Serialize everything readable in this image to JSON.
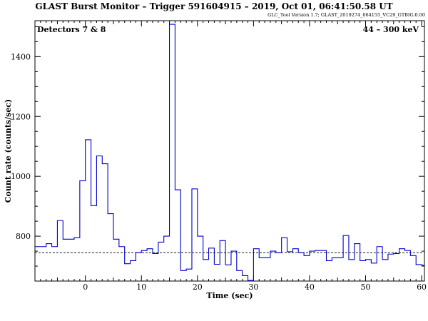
{
  "chart_data": {
    "type": "line",
    "style": "step",
    "title": "GLAST Burst Monitor  –  Trigger 591604915  –  2019, Oct 01, 06:41:50.58 UT",
    "subtitle": "GLC_Tool Version 1.7; GLAST_2019274_064155_VC29_GTBIG.0.00",
    "xlabel": "Time (sec)",
    "ylabel": "Count rate (counts/sec)",
    "annotation_left": "Detectors 7 & 8",
    "annotation_right": "44 – 300 keV",
    "xlim": [
      -9,
      60.5
    ],
    "ylim": [
      650,
      1520
    ],
    "xticks": [
      0,
      10,
      20,
      30,
      40,
      50,
      60
    ],
    "yticks": [
      800,
      1000,
      1200,
      1400
    ],
    "background_level": 745,
    "grid": false,
    "bins": [
      {
        "x": -9,
        "y": 765
      },
      {
        "x": -8,
        "y": 765
      },
      {
        "x": -7,
        "y": 775
      },
      {
        "x": -6,
        "y": 765
      },
      {
        "x": -5,
        "y": 852
      },
      {
        "x": -4,
        "y": 790
      },
      {
        "x": -3,
        "y": 790
      },
      {
        "x": -2,
        "y": 795
      },
      {
        "x": -1,
        "y": 985
      },
      {
        "x": 0,
        "y": 1122
      },
      {
        "x": 1,
        "y": 902
      },
      {
        "x": 2,
        "y": 1068
      },
      {
        "x": 3,
        "y": 1042
      },
      {
        "x": 4,
        "y": 875
      },
      {
        "x": 5,
        "y": 790
      },
      {
        "x": 6,
        "y": 765
      },
      {
        "x": 7,
        "y": 708
      },
      {
        "x": 8,
        "y": 718
      },
      {
        "x": 9,
        "y": 745
      },
      {
        "x": 10,
        "y": 752
      },
      {
        "x": 11,
        "y": 758
      },
      {
        "x": 12,
        "y": 742
      },
      {
        "x": 13,
        "y": 780
      },
      {
        "x": 14,
        "y": 800
      },
      {
        "x": 15,
        "y": 1508
      },
      {
        "x": 16,
        "y": 955
      },
      {
        "x": 17,
        "y": 685
      },
      {
        "x": 18,
        "y": 690
      },
      {
        "x": 19,
        "y": 958
      },
      {
        "x": 20,
        "y": 800
      },
      {
        "x": 21,
        "y": 722
      },
      {
        "x": 22,
        "y": 760
      },
      {
        "x": 23,
        "y": 706
      },
      {
        "x": 24,
        "y": 785
      },
      {
        "x": 25,
        "y": 704
      },
      {
        "x": 26,
        "y": 750
      },
      {
        "x": 27,
        "y": 685
      },
      {
        "x": 28,
        "y": 668
      },
      {
        "x": 29,
        "y": 652
      },
      {
        "x": 30,
        "y": 758
      },
      {
        "x": 31,
        "y": 728
      },
      {
        "x": 32,
        "y": 728
      },
      {
        "x": 33,
        "y": 750
      },
      {
        "x": 34,
        "y": 745
      },
      {
        "x": 35,
        "y": 795
      },
      {
        "x": 36,
        "y": 748
      },
      {
        "x": 37,
        "y": 758
      },
      {
        "x": 38,
        "y": 745
      },
      {
        "x": 39,
        "y": 735
      },
      {
        "x": 40,
        "y": 750
      },
      {
        "x": 41,
        "y": 752
      },
      {
        "x": 42,
        "y": 752
      },
      {
        "x": 43,
        "y": 718
      },
      {
        "x": 44,
        "y": 728
      },
      {
        "x": 45,
        "y": 728
      },
      {
        "x": 46,
        "y": 802
      },
      {
        "x": 47,
        "y": 722
      },
      {
        "x": 48,
        "y": 775
      },
      {
        "x": 49,
        "y": 718
      },
      {
        "x": 50,
        "y": 722
      },
      {
        "x": 51,
        "y": 710
      },
      {
        "x": 52,
        "y": 765
      },
      {
        "x": 53,
        "y": 722
      },
      {
        "x": 54,
        "y": 740
      },
      {
        "x": 55,
        "y": 742
      },
      {
        "x": 56,
        "y": 758
      },
      {
        "x": 57,
        "y": 752
      },
      {
        "x": 58,
        "y": 735
      },
      {
        "x": 59,
        "y": 705
      },
      {
        "x": 60,
        "y": 703
      }
    ],
    "bin_width": 1,
    "colors": {
      "data": "#0000cc",
      "background": "#000000",
      "frame": "#000000"
    }
  }
}
